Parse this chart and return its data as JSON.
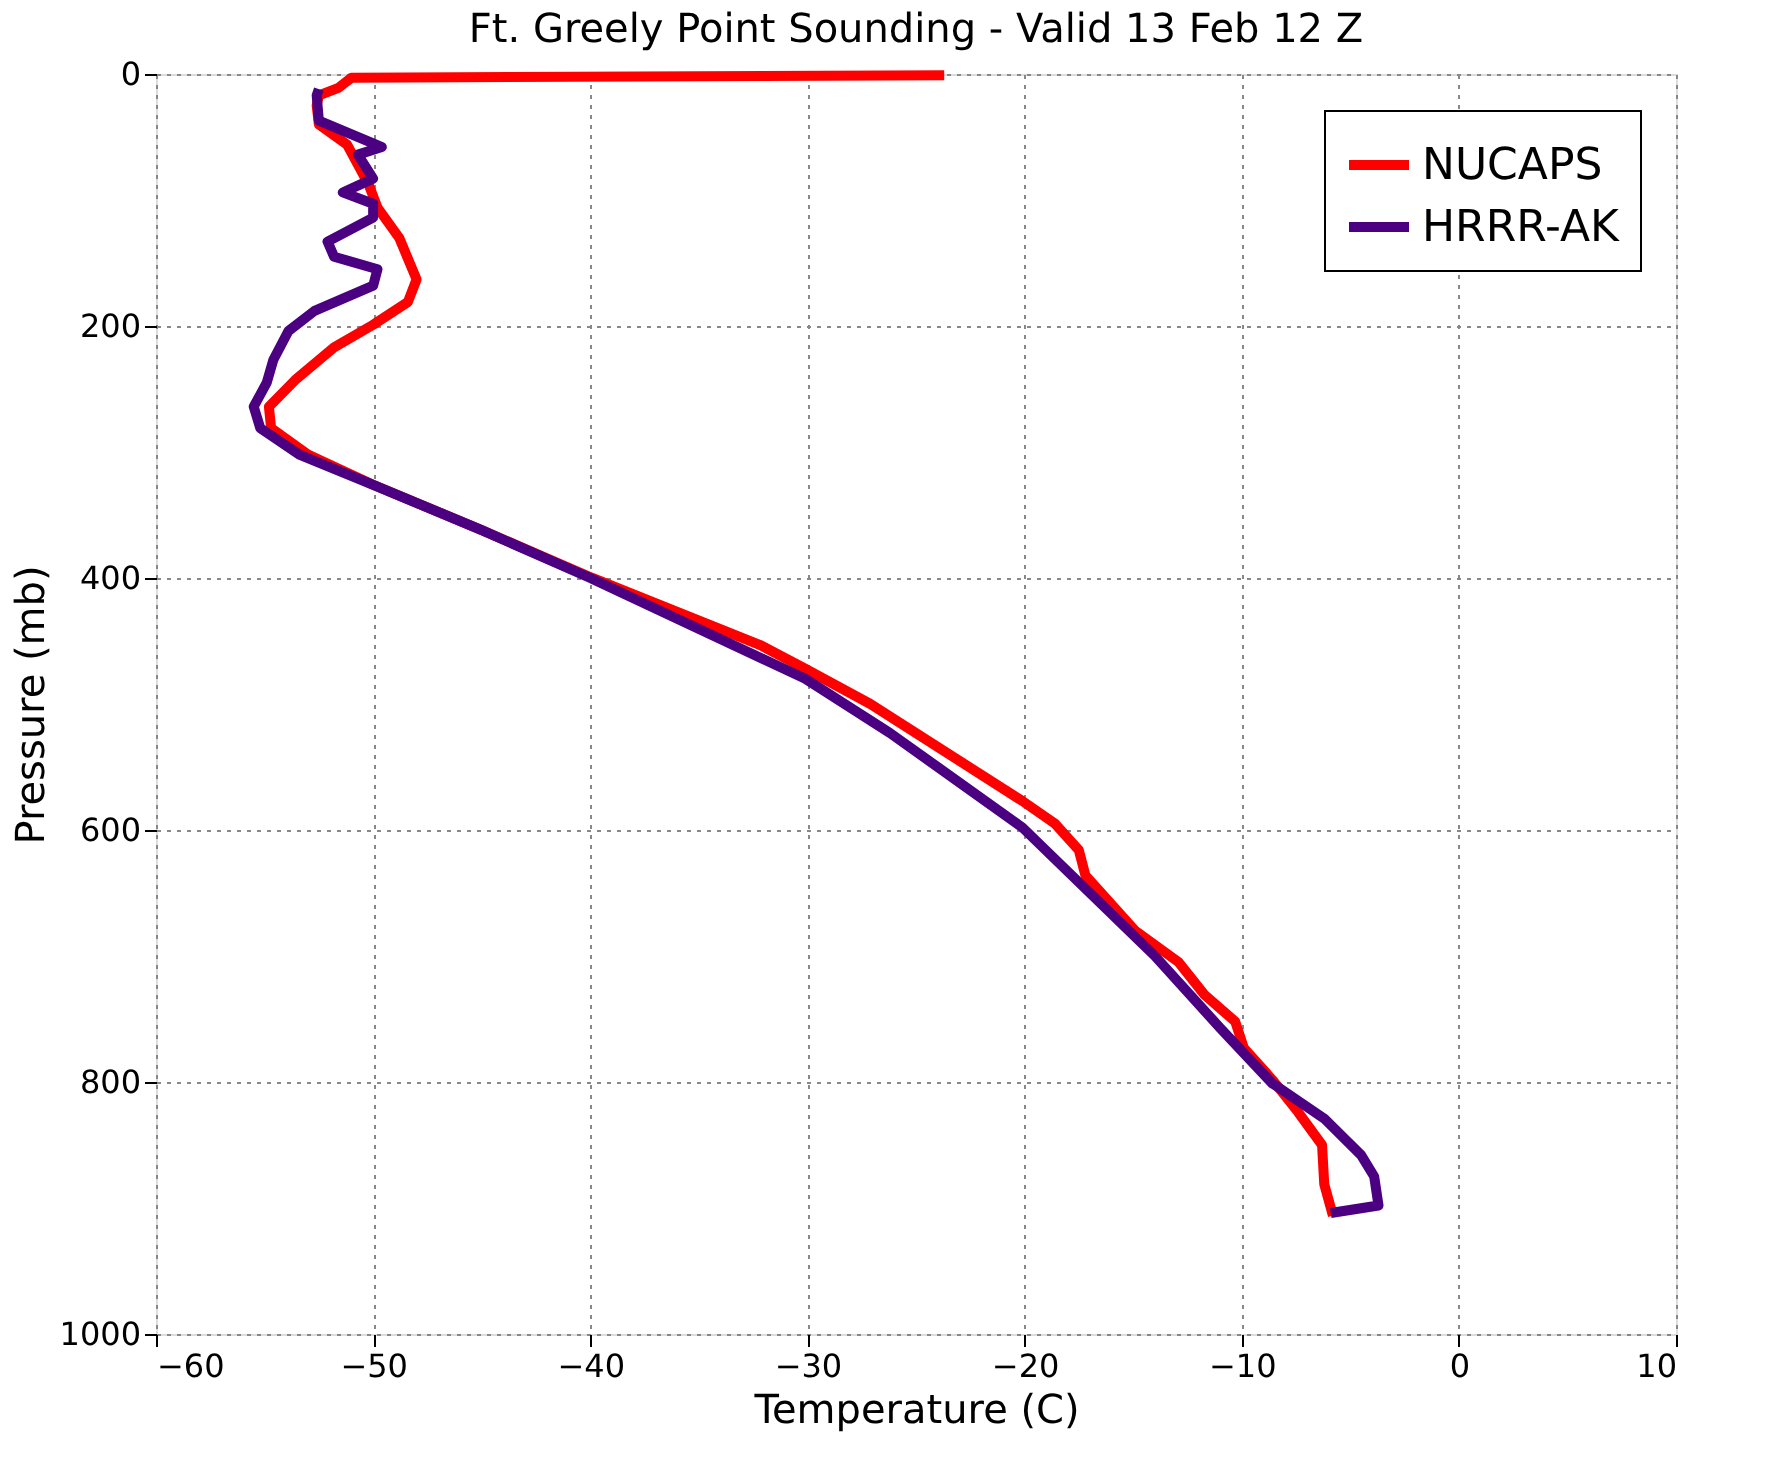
{
  "chart_data": {
    "type": "line",
    "title": "Ft. Greely Point Sounding - Valid 13 Feb 12 Z",
    "xlabel": "Temperature (C)",
    "ylabel": "Pressure (mb)",
    "xlim": [
      -60,
      10
    ],
    "xticks": [
      -60,
      -50,
      -40,
      -30,
      -20,
      -10,
      0,
      10
    ],
    "ylim": [
      1000,
      0
    ],
    "yticks": [
      0,
      200,
      400,
      600,
      800,
      1000
    ],
    "grid": true,
    "legend": "top right",
    "line_style": "solid",
    "marker": "none",
    "series": [
      {
        "name": "NUCAPS",
        "color": "#ff0000",
        "x": [
          -23.7,
          -51,
          -51.6,
          -52.5,
          -52.6,
          -52.5,
          -51.2,
          -50.2,
          -49.8,
          -48.8,
          -48,
          -48.4,
          -50,
          -51.8,
          -53.6,
          -54.8,
          -54.7,
          -53,
          -50,
          -45,
          -39.9,
          -32.2,
          -30.1,
          -27.1,
          -20.1,
          -18.6,
          -17.5,
          -17.2,
          -14.9,
          -12.9,
          -11.7,
          -10.3,
          -9.9,
          -8.6,
          -7.4,
          -6.3,
          -6.2,
          -5.8
        ],
        "values": [
          1,
          3,
          11,
          17,
          25,
          40,
          56,
          88,
          106,
          130,
          163,
          181,
          199,
          217,
          243,
          264,
          281,
          302,
          326,
          362,
          400,
          453,
          472,
          500,
          577,
          595,
          616,
          636,
          680,
          705,
          731,
          752,
          773,
          798,
          824,
          850,
          881,
          906
        ]
      },
      {
        "name": "HRRR-AK",
        "color": "#4b0082",
        "x": [
          -52.5,
          -52.6,
          -52.5,
          -50,
          -49.6,
          -50.7,
          -50,
          -51.4,
          -50,
          -50,
          -52.1,
          -51.8,
          -49.8,
          -50,
          -52.7,
          -53.9,
          -54.6,
          -54.9,
          -55.5,
          -55.2,
          -53.4,
          -50,
          -45,
          -40,
          -30.1,
          -26.2,
          -20.1,
          -14,
          -11,
          -8.6,
          -6.2,
          -4.5,
          -3.9,
          -3.7,
          -5.9
        ],
        "values": [
          12,
          17,
          37,
          55,
          58,
          64,
          83,
          94,
          103,
          114,
          133,
          145,
          155,
          168,
          188,
          204,
          227,
          245,
          264,
          281,
          302,
          326,
          362,
          400,
          480,
          523,
          598,
          700,
          757,
          801,
          829,
          858,
          875,
          898,
          904
        ]
      }
    ]
  }
}
